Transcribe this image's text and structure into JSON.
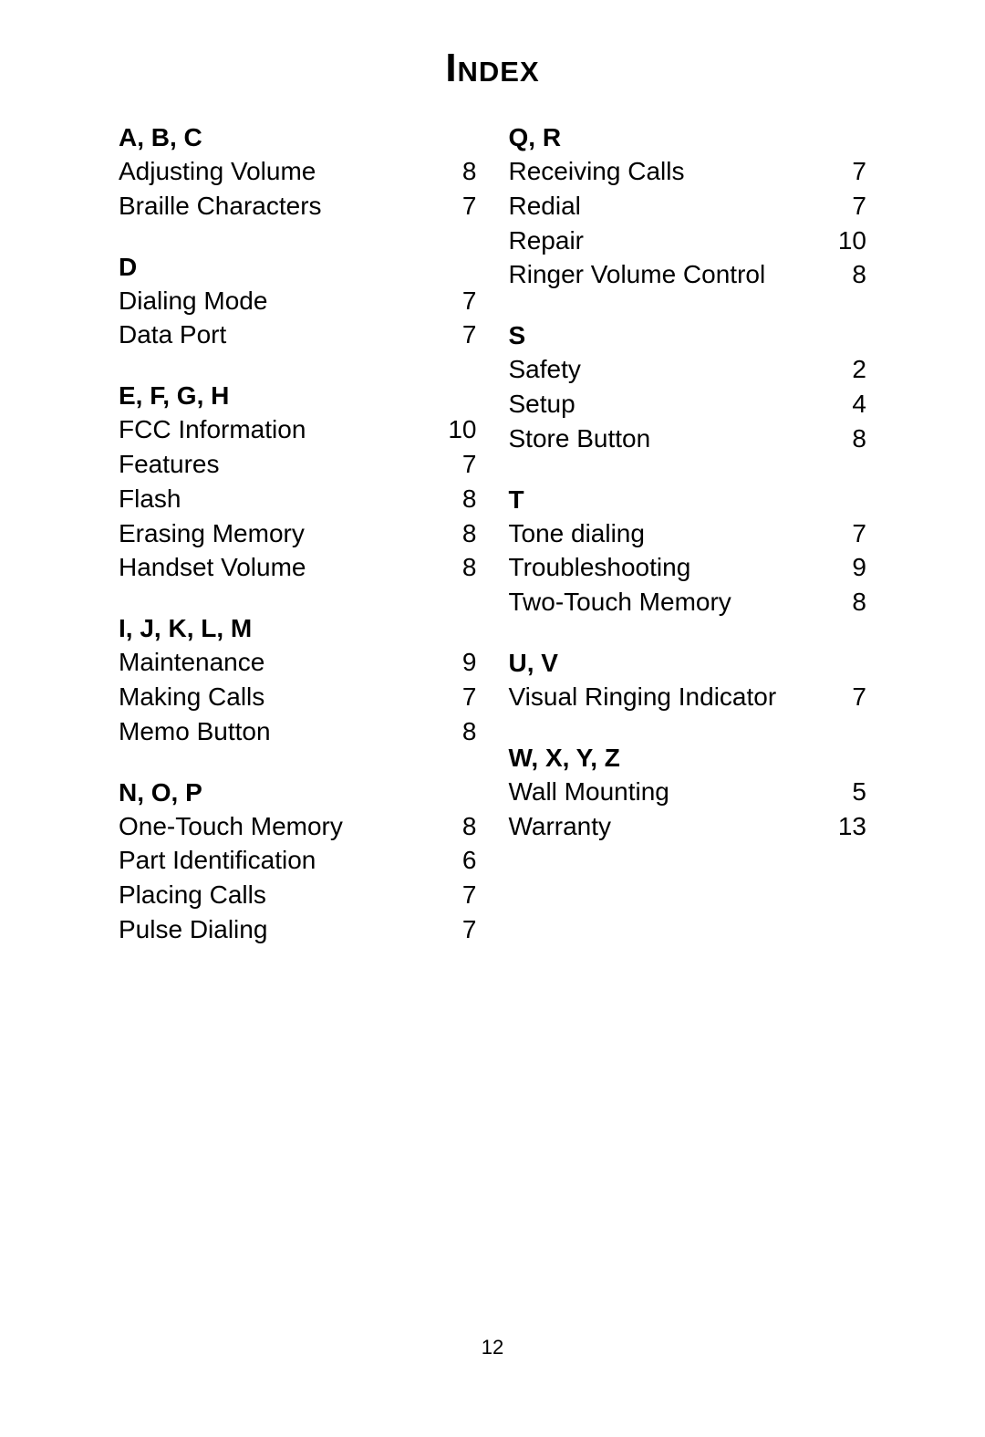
{
  "title": "Index",
  "pageNumber": "12",
  "leftColumn": [
    {
      "header": "A, B, C",
      "entries": [
        {
          "term": "Adjusting Volume",
          "page": "8"
        },
        {
          "term": "Braille Characters",
          "page": "7"
        }
      ]
    },
    {
      "header": "D",
      "entries": [
        {
          "term": "Dialing Mode",
          "page": "7"
        },
        {
          "term": "Data Port",
          "page": "7"
        }
      ]
    },
    {
      "header": "E, F, G, H",
      "entries": [
        {
          "term": "FCC Information",
          "page": "10"
        },
        {
          "term": "Features",
          "page": "7"
        },
        {
          "term": "Flash",
          "page": "8"
        },
        {
          "term": "Erasing Memory",
          "page": "8"
        },
        {
          "term": "Handset Volume",
          "page": "8"
        }
      ]
    },
    {
      "header": "I, J, K, L, M",
      "entries": [
        {
          "term": "Maintenance",
          "page": "9"
        },
        {
          "term": "Making Calls",
          "page": "7"
        },
        {
          "term": "Memo Button",
          "page": "8"
        }
      ]
    },
    {
      "header": "N, O, P",
      "entries": [
        {
          "term": "One-Touch Memory",
          "page": "8"
        },
        {
          "term": "Part Identification",
          "page": "6"
        },
        {
          "term": "Placing Calls",
          "page": "7"
        },
        {
          "term": "Pulse Dialing",
          "page": "7"
        }
      ]
    }
  ],
  "rightColumn": [
    {
      "header": "Q, R",
      "entries": [
        {
          "term": "Receiving Calls",
          "page": "7"
        },
        {
          "term": "Redial",
          "page": "7"
        },
        {
          "term": "Repair",
          "page": "10"
        },
        {
          "term": "Ringer Volume Control",
          "page": "8"
        }
      ]
    },
    {
      "header": "S",
      "entries": [
        {
          "term": "Safety",
          "page": "2"
        },
        {
          "term": "Setup",
          "page": "4"
        },
        {
          "term": "Store Button",
          "page": "8"
        }
      ]
    },
    {
      "header": "T",
      "entries": [
        {
          "term": "Tone dialing",
          "page": "7"
        },
        {
          "term": "Troubleshooting",
          "page": "9"
        },
        {
          "term": "Two-Touch Memory",
          "page": "8"
        }
      ]
    },
    {
      "header": "U, V",
      "entries": [
        {
          "term": "Visual Ringing Indicator",
          "page": "7"
        }
      ]
    },
    {
      "header": "W, X, Y, Z",
      "entries": [
        {
          "term": "Wall Mounting",
          "page": "5"
        },
        {
          "term": "Warranty",
          "page": "13"
        }
      ]
    }
  ]
}
